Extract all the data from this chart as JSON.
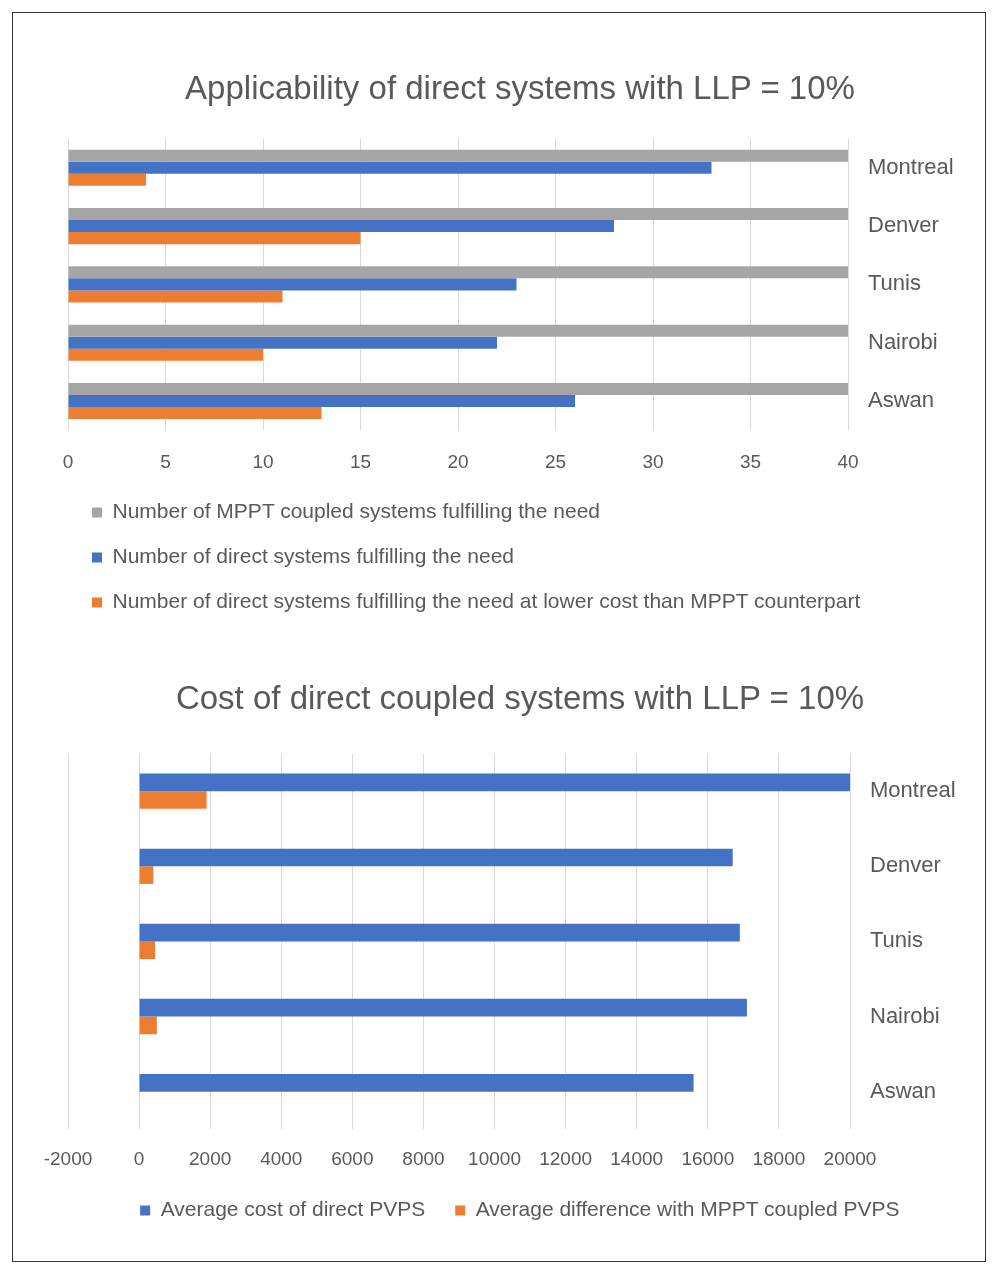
{
  "chart_data": [
    {
      "type": "bar",
      "title": "Applicability of direct systems with LLP = 10%",
      "orientation": "horizontal",
      "categories": [
        "Montreal",
        "Denver",
        "Tunis",
        "Nairobi",
        "Aswan"
      ],
      "series": [
        {
          "name": "Number of MPPT coupled systems fulfilling the need",
          "color": "#a5a5a5",
          "values": [
            40,
            40,
            40,
            40,
            40
          ]
        },
        {
          "name": "Number of direct systems fulfilling the need",
          "color": "#4472c4",
          "values": [
            33,
            28,
            23,
            22,
            26
          ]
        },
        {
          "name": "Number of direct systems fulfilling the need at lower cost than MPPT counterpart",
          "color": "#ed7d31",
          "values": [
            4,
            15,
            11,
            10,
            13
          ]
        }
      ],
      "xlim": [
        0,
        40
      ],
      "xticks": [
        0,
        5,
        10,
        15,
        20,
        25,
        30,
        35,
        40
      ],
      "grid": "x",
      "legend": "bottom left"
    },
    {
      "type": "bar",
      "title": "Cost of direct coupled systems with LLP = 10%",
      "orientation": "horizontal",
      "categories": [
        "Montreal",
        "Denver",
        "Tunis",
        "Nairobi",
        "Aswan"
      ],
      "series": [
        {
          "name": "Average cost of direct PVPS",
          "color": "#4472c4",
          "values": [
            20000,
            16700,
            16900,
            17100,
            15600
          ]
        },
        {
          "name": "Average difference with MPPT coupled PVPS",
          "color": "#ed7d31",
          "values": [
            1900,
            400,
            450,
            500,
            null
          ]
        }
      ],
      "xlim": [
        -2000,
        20000
      ],
      "xticks": [
        -2000,
        0,
        2000,
        4000,
        6000,
        8000,
        10000,
        12000,
        14000,
        16000,
        18000,
        20000
      ],
      "grid": "x",
      "legend": "bottom"
    }
  ]
}
